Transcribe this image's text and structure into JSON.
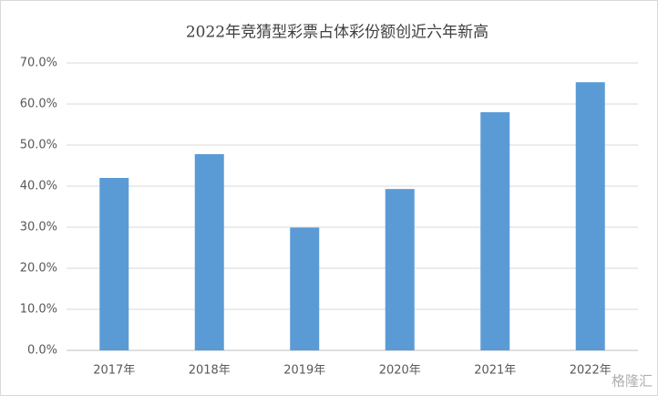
{
  "chart_data": {
    "type": "bar",
    "title": "2022年竞猜型彩票占体彩份额创近六年新高",
    "categories": [
      "2017年",
      "2018年",
      "2019年",
      "2020年",
      "2021年",
      "2022年"
    ],
    "values": [
      42.0,
      47.8,
      29.9,
      39.3,
      58.0,
      65.3
    ],
    "color": "#5b9bd5",
    "ylim": [
      0,
      70
    ],
    "yticks": [
      {
        "value": 0,
        "label": "0.0%"
      },
      {
        "value": 10,
        "label": "10.0%"
      },
      {
        "value": 20,
        "label": "20.0%"
      },
      {
        "value": 30,
        "label": "30.0%"
      },
      {
        "value": 40,
        "label": "40.0%"
      },
      {
        "value": 50,
        "label": "50.0%"
      },
      {
        "value": 60,
        "label": "60.0%"
      },
      {
        "value": 70,
        "label": "70.0%"
      }
    ],
    "grid": true,
    "watermark": "格隆汇"
  }
}
